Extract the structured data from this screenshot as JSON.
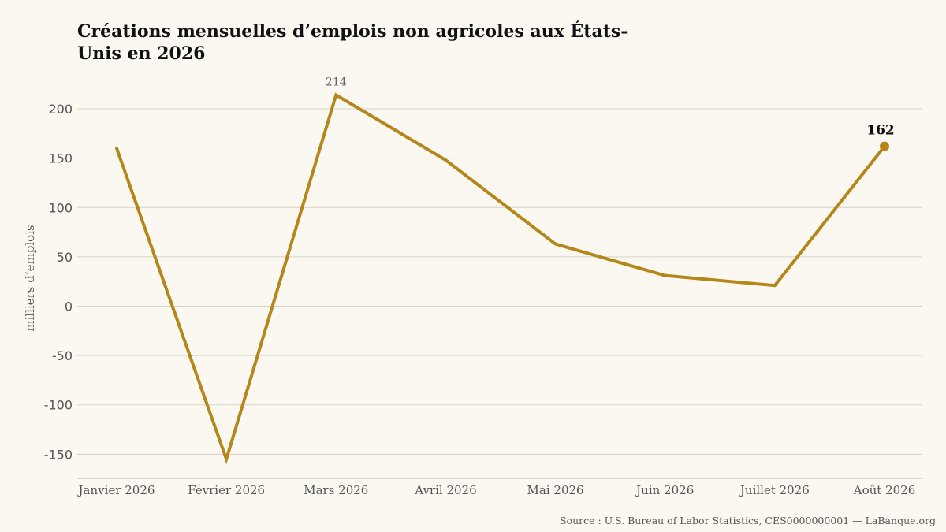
{
  "chart_data": {
    "type": "line",
    "title": "Créations mensuelles d’emplois non agricoles aux États-Unis en 2026",
    "ylabel": "milliers d’emplois",
    "xlabel": "",
    "categories": [
      "Janvier 2026",
      "Février 2026",
      "Mars 2026",
      "Avril 2026",
      "Mai 2026",
      "Juin 2026",
      "Juillet 2026",
      "Août 2026"
    ],
    "series": [
      {
        "values": [
          160,
          -155,
          214,
          148,
          63,
          31,
          21,
          162
        ]
      }
    ],
    "ylim": [
      -175,
      200
    ],
    "yticks": [
      200,
      150,
      100,
      50,
      0,
      -50,
      -100,
      -150
    ],
    "ytick_labels": [
      "200",
      "150",
      "100",
      "50",
      "0",
      "-50",
      "-100",
      "-150"
    ],
    "annotations": [
      {
        "category": "Mars 2026",
        "text": "214"
      },
      {
        "category": "Août 2026",
        "text": "162"
      }
    ],
    "grid": "horizontal",
    "legend": "none",
    "colors": {
      "line": "#b5871b",
      "grid": "#d8d4c4",
      "grid_highlight": "#e3c9c0",
      "background": "#faf8f1"
    }
  },
  "source": "Source : U.S. Bureau of Labor Statistics, CES0000000001 — LaBanque.org"
}
